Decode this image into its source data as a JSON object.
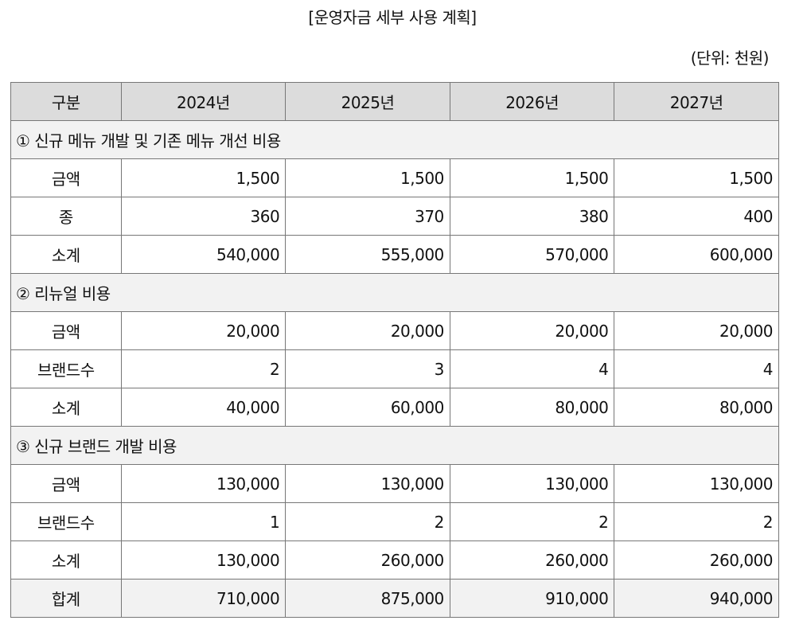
{
  "title": "[운영자금 세부 사용 계획]",
  "unit": "(단위: 천원)",
  "table": {
    "headers": [
      "구분",
      "2024년",
      "2025년",
      "2026년",
      "2027년"
    ],
    "sections": [
      {
        "title": "① 신규 메뉴 개발 및 기존 메뉴 개선 비용",
        "rows": [
          {
            "label": "금액",
            "values": [
              "1,500",
              "1,500",
              "1,500",
              "1,500"
            ]
          },
          {
            "label": "종",
            "values": [
              "360",
              "370",
              "380",
              "400"
            ]
          },
          {
            "label": "소계",
            "values": [
              "540,000",
              "555,000",
              "570,000",
              "600,000"
            ]
          }
        ]
      },
      {
        "title": "② 리뉴얼 비용",
        "rows": [
          {
            "label": "금액",
            "values": [
              "20,000",
              "20,000",
              "20,000",
              "20,000"
            ]
          },
          {
            "label": "브랜드수",
            "values": [
              "2",
              "3",
              "4",
              "4"
            ]
          },
          {
            "label": "소계",
            "values": [
              "40,000",
              "60,000",
              "80,000",
              "80,000"
            ]
          }
        ]
      },
      {
        "title": "③ 신규 브랜드 개발 비용",
        "rows": [
          {
            "label": "금액",
            "values": [
              "130,000",
              "130,000",
              "130,000",
              "130,000"
            ]
          },
          {
            "label": "브랜드수",
            "values": [
              "1",
              "2",
              "2",
              "2"
            ]
          },
          {
            "label": "소계",
            "values": [
              "130,000",
              "260,000",
              "260,000",
              "260,000"
            ]
          }
        ]
      }
    ],
    "total": {
      "label": "합계",
      "values": [
        "710,000",
        "875,000",
        "910,000",
        "940,000"
      ]
    }
  }
}
